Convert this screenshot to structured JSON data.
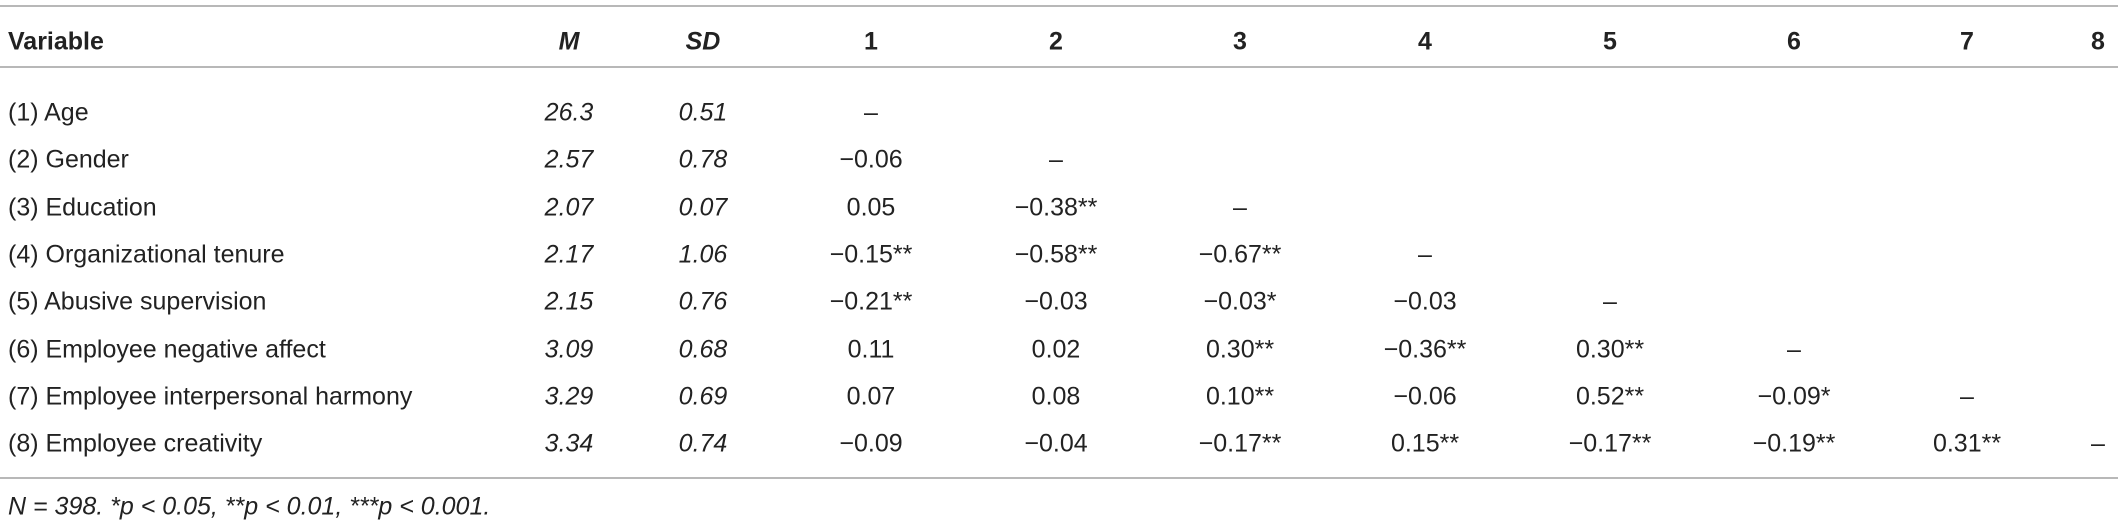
{
  "table": {
    "header": [
      "Variable",
      "M",
      "SD",
      "1",
      "2",
      "3",
      "4",
      "5",
      "6",
      "7",
      "8"
    ],
    "rows": [
      [
        "(1) Age",
        "26.3",
        "0.51",
        "–"
      ],
      [
        "(2) Gender",
        "2.57",
        "0.78",
        "−0.06",
        "–"
      ],
      [
        "(3) Education",
        "2.07",
        "0.07",
        "0.05",
        "−0.38**",
        "–"
      ],
      [
        "(4) Organizational tenure",
        "2.17",
        "1.06",
        "−0.15**",
        "−0.58**",
        "−0.67**",
        "–"
      ],
      [
        "(5) Abusive supervision",
        "2.15",
        "0.76",
        "−0.21**",
        "−0.03",
        "−0.03*",
        "−0.03",
        "–"
      ],
      [
        "(6) Employee negative affect",
        "3.09",
        "0.68",
        "0.11",
        "0.02",
        "0.30**",
        "−0.36**",
        "0.30**",
        "–"
      ],
      [
        "(7) Employee interpersonal harmony",
        "3.29",
        "0.69",
        "0.07",
        "0.08",
        "0.10**",
        "−0.06",
        "0.52**",
        "−0.09*",
        "–"
      ],
      [
        "(8) Employee creativity",
        "3.34",
        "0.74",
        "−0.09",
        "−0.04",
        "−0.17**",
        "0.15**",
        "−0.17**",
        "−0.19**",
        "0.31**",
        "–"
      ]
    ],
    "footnote": "N = 398. *p < 0.05, **p < 0.01, ***p < 0.001."
  }
}
